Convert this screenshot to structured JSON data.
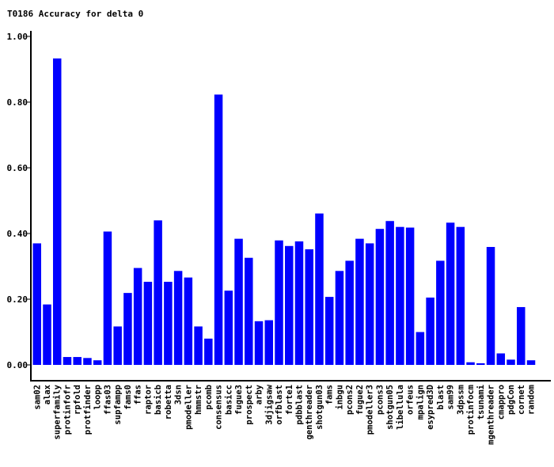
{
  "chart_data": {
    "type": "bar",
    "title": "T0186 Accuracy for delta 0",
    "xlabel": "",
    "ylabel": "",
    "ylim": [
      0,
      1
    ],
    "yticks": [
      "0.00",
      "0.20",
      "0.40",
      "0.60",
      "0.80",
      "1.00"
    ],
    "bar_color": "#0000ff",
    "categories": [
      "sam02",
      "alax",
      "superfamily",
      "protinfofr",
      "rpfold",
      "protfinder",
      "loopp",
      "ffas03",
      "supfampp",
      "fams0",
      "ffas",
      "raptor",
      "basicb",
      "robetta",
      "3dsn",
      "pmodeller",
      "hmmstr",
      "pcomb",
      "consensus",
      "basicc",
      "fugue3",
      "prospect",
      "arby",
      "3djigsaw",
      "orfblast",
      "forte1",
      "pdbblast",
      "genthreader",
      "shotgun03",
      "fams",
      "inbgu",
      "pcons2",
      "fugue2",
      "pmodeller3",
      "pcons3",
      "shotgun05",
      "libellula",
      "orfeus",
      "mpalign",
      "esypred3D",
      "blast",
      "sam99",
      "3dpssm",
      "protinfocm",
      "tsunami",
      "mgenthreader",
      "cmappro",
      "pdgCon",
      "cornet",
      "random"
    ],
    "values": [
      0.37,
      0.184,
      0.933,
      0.024,
      0.024,
      0.021,
      0.014,
      0.406,
      0.117,
      0.219,
      0.295,
      0.253,
      0.44,
      0.253,
      0.286,
      0.266,
      0.117,
      0.08,
      0.823,
      0.226,
      0.384,
      0.326,
      0.133,
      0.136,
      0.379,
      0.362,
      0.376,
      0.352,
      0.461,
      0.207,
      0.286,
      0.317,
      0.384,
      0.37,
      0.414,
      0.438,
      0.42,
      0.418,
      0.1,
      0.205,
      0.317,
      0.433,
      0.42,
      0.008,
      0.005,
      0.359,
      0.035,
      0.016,
      0.176,
      0.014
    ]
  }
}
